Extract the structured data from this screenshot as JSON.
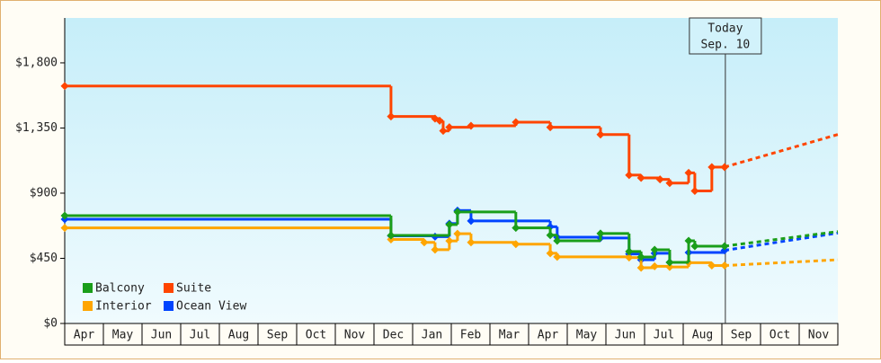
{
  "chart_data": {
    "type": "line",
    "step": true,
    "xlim": [
      0,
      20
    ],
    "xticks": [
      {
        "value": 0.5,
        "label": "Apr"
      },
      {
        "value": 1.5,
        "label": "May"
      },
      {
        "value": 2.5,
        "label": "Jun"
      },
      {
        "value": 3.5,
        "label": "Jul"
      },
      {
        "value": 4.5,
        "label": "Aug"
      },
      {
        "value": 5.5,
        "label": "Sep"
      },
      {
        "value": 6.5,
        "label": "Oct"
      },
      {
        "value": 7.5,
        "label": "Nov"
      },
      {
        "value": 8.5,
        "label": "Dec"
      },
      {
        "value": 9.5,
        "label": "Jan"
      },
      {
        "value": 10.5,
        "label": "Feb"
      },
      {
        "value": 11.5,
        "label": "Mar"
      },
      {
        "value": 12.5,
        "label": "Apr"
      },
      {
        "value": 13.5,
        "label": "May"
      },
      {
        "value": 14.5,
        "label": "Jun"
      },
      {
        "value": 15.5,
        "label": "Jul"
      },
      {
        "value": 16.5,
        "label": "Aug"
      },
      {
        "value": 17.5,
        "label": "Sep"
      },
      {
        "value": 18.5,
        "label": "Oct"
      },
      {
        "value": 19.5,
        "label": "Nov"
      }
    ],
    "ylim": [
      0,
      2110
    ],
    "yticks": [
      {
        "value": 0,
        "label": "$0"
      },
      {
        "value": 450,
        "label": "$450"
      },
      {
        "value": 900,
        "label": "$900"
      },
      {
        "value": 1350,
        "label": "$1,350"
      },
      {
        "value": 1800,
        "label": "$1,800"
      }
    ],
    "today": {
      "x": 17.09,
      "label": "Today",
      "date": "Sep. 10"
    },
    "series": [
      {
        "name": "Suite",
        "color": "#ff4500",
        "x": [
          0,
          8.44,
          9.58,
          9.7,
          9.79,
          9.95,
          10.51,
          11.67,
          12.56,
          13.86,
          14.6,
          14.91,
          15.4,
          15.65,
          16.14,
          16.3,
          16.74,
          17.07
        ],
        "values": [
          1640,
          1430,
          1415,
          1400,
          1330,
          1355,
          1365,
          1390,
          1355,
          1305,
          1025,
          1005,
          995,
          970,
          1040,
          915,
          1080,
          1080
        ],
        "forecast": 1305
      },
      {
        "name": "Ocean View",
        "color": "#0044ff",
        "x": [
          0,
          8.44,
          9.58,
          9.95,
          10.16,
          10.51,
          12.56,
          12.74,
          13.86,
          14.6,
          14.91,
          15.26,
          15.65,
          16.14,
          17.07
        ],
        "values": [
          720,
          605,
          600,
          690,
          780,
          708,
          668,
          596,
          590,
          480,
          440,
          485,
          422,
          490,
          505
        ],
        "forecast": 625
      },
      {
        "name": "Interior",
        "color": "#ffa500",
        "x": [
          0,
          8.44,
          9.3,
          9.58,
          9.95,
          10.16,
          10.51,
          11.67,
          12.56,
          12.74,
          14.6,
          14.91,
          15.26,
          15.65,
          16.14,
          16.74,
          17.07
        ],
        "values": [
          660,
          580,
          560,
          510,
          570,
          620,
          560,
          548,
          485,
          460,
          455,
          385,
          395,
          390,
          420,
          400,
          400
        ],
        "forecast": 440
      },
      {
        "name": "Balcony",
        "color": "#1a9e1a",
        "x": [
          0,
          8.44,
          9.95,
          10.16,
          11.67,
          12.56,
          12.74,
          13.86,
          14.6,
          14.91,
          15.26,
          15.65,
          16.14,
          16.3,
          17.07
        ],
        "values": [
          745,
          608,
          683,
          770,
          660,
          610,
          571,
          621,
          497,
          459,
          509,
          422,
          571,
          534,
          534
        ],
        "forecast": 635
      }
    ],
    "legend_order": [
      3,
      0,
      2,
      1
    ]
  }
}
